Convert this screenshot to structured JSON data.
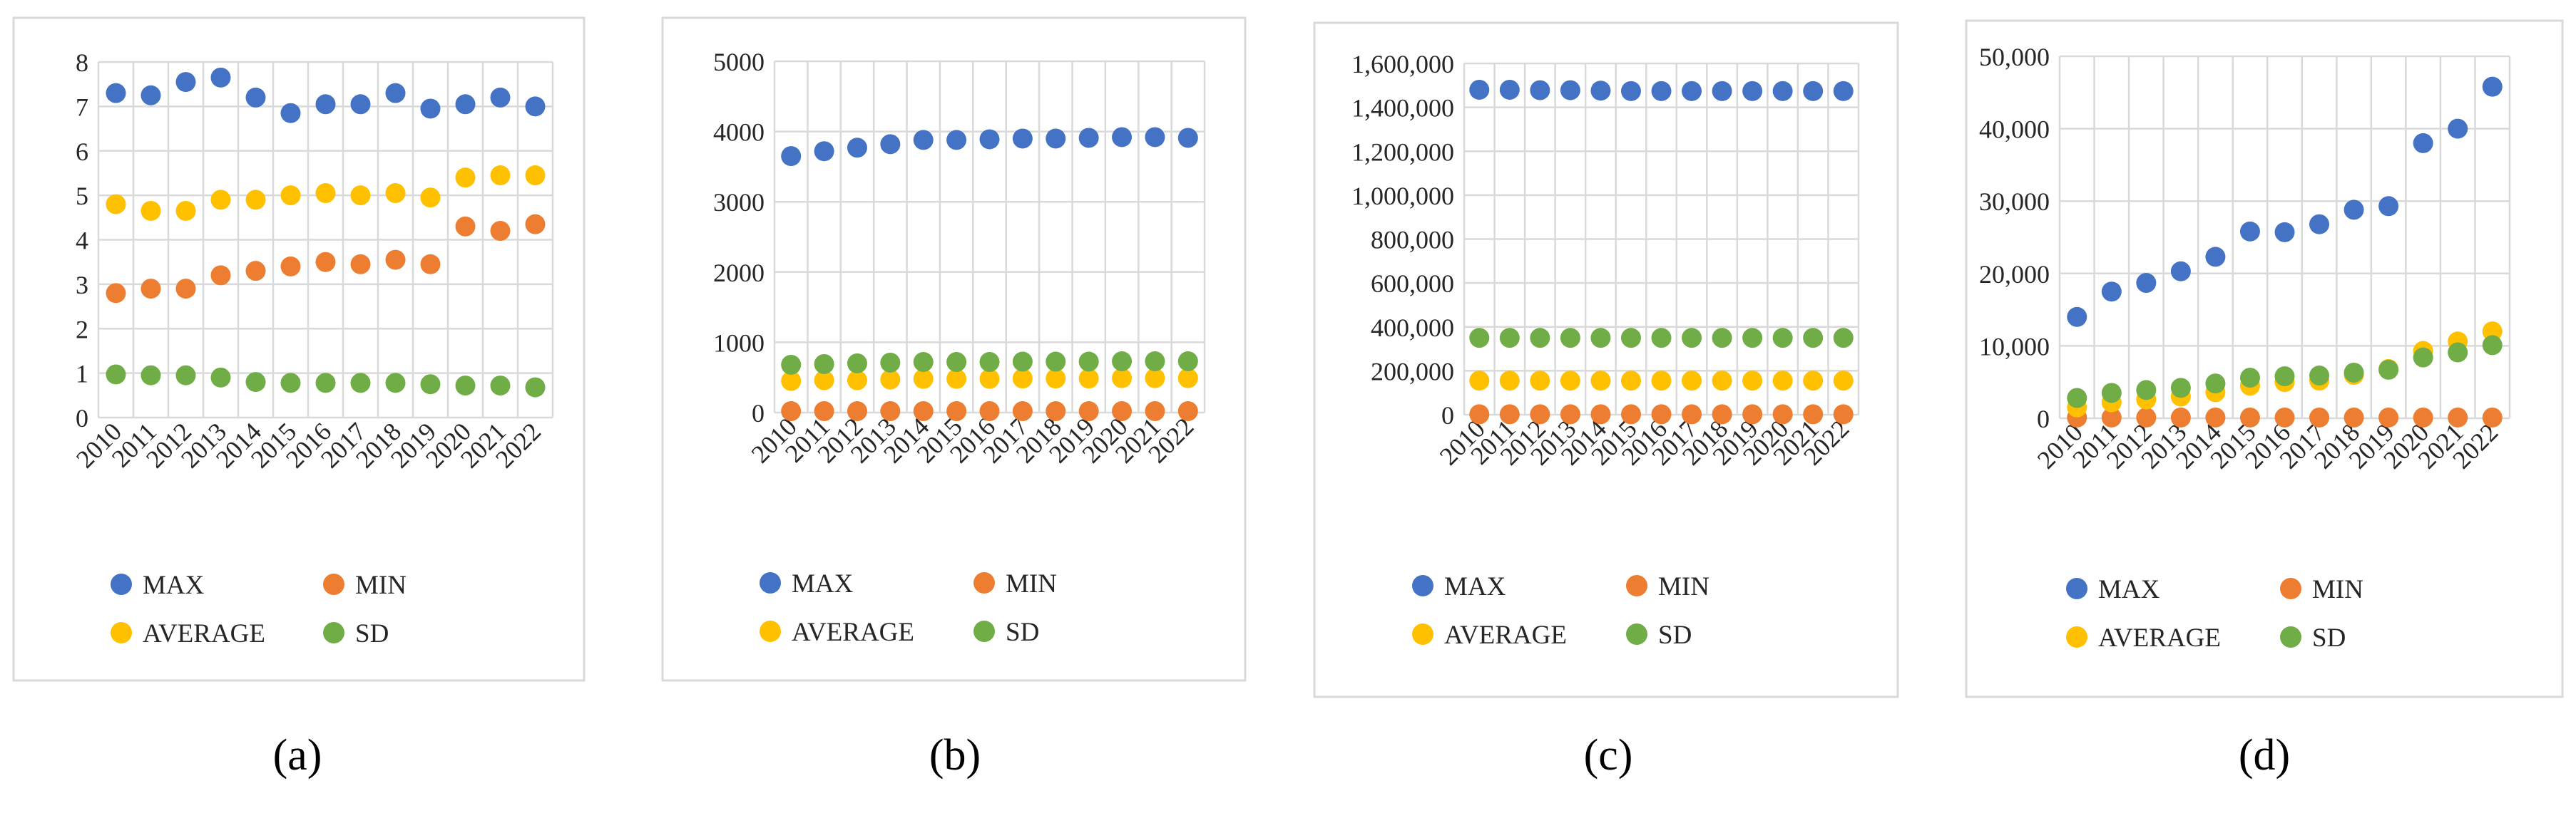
{
  "chart_data": [
    {
      "type": "scatter",
      "caption": "(a)",
      "categories": [
        "2010",
        "2011",
        "2012",
        "2013",
        "2014",
        "2015",
        "2016",
        "2017",
        "2018",
        "2019",
        "2020",
        "2021",
        "2022"
      ],
      "ylim": [
        0,
        8
      ],
      "yticks": [
        0,
        1,
        2,
        3,
        4,
        5,
        6,
        7,
        8
      ],
      "ytick_labels": [
        "0",
        "1",
        "2",
        "3",
        "4",
        "5",
        "6",
        "7",
        "8"
      ],
      "series": [
        {
          "name": "MAX",
          "color": "#4472C4",
          "values": [
            7.3,
            7.25,
            7.55,
            7.65,
            7.2,
            6.85,
            7.05,
            7.05,
            7.3,
            6.95,
            7.05,
            7.2,
            7.0
          ]
        },
        {
          "name": "MIN",
          "color": "#ED7D31",
          "values": [
            2.8,
            2.9,
            2.9,
            3.2,
            3.3,
            3.4,
            3.5,
            3.45,
            3.55,
            3.45,
            null,
            null,
            null
          ]
        },
        {
          "name": "AVERAGE",
          "color": "#FFC000",
          "values": [
            4.8,
            4.65,
            4.65,
            4.9,
            4.9,
            5.0,
            5.05,
            5.0,
            5.05,
            4.95,
            5.4,
            5.45,
            5.45
          ]
        },
        {
          "name": "SD",
          "color": "#70AD47",
          "values": [
            0.97,
            0.95,
            0.95,
            0.9,
            0.8,
            0.78,
            0.78,
            0.78,
            0.78,
            0.75,
            0.72,
            0.72,
            0.68
          ]
        },
        {
          "name": "MIN",
          "color": "#ED7D31",
          "values": [
            null,
            null,
            null,
            null,
            null,
            null,
            null,
            null,
            null,
            null,
            4.3,
            4.2,
            4.35
          ]
        }
      ]
    },
    {
      "type": "scatter",
      "caption": "(b)",
      "categories": [
        "2010",
        "2011",
        "2012",
        "2013",
        "2014",
        "2015",
        "2016",
        "2017",
        "2018",
        "2019",
        "2020",
        "2021",
        "2022"
      ],
      "ylim": [
        0,
        5000
      ],
      "yticks": [
        0,
        1000,
        2000,
        3000,
        4000,
        5000
      ],
      "ytick_labels": [
        "0",
        "1000",
        "2000",
        "3000",
        "4000",
        "5000"
      ],
      "series": [
        {
          "name": "MAX",
          "color": "#4472C4",
          "values": [
            3650,
            3720,
            3770,
            3820,
            3880,
            3880,
            3890,
            3900,
            3900,
            3910,
            3920,
            3920,
            3910
          ]
        },
        {
          "name": "MIN",
          "color": "#ED7D31",
          "values": [
            20,
            20,
            20,
            20,
            20,
            20,
            20,
            20,
            20,
            20,
            20,
            20,
            20
          ]
        },
        {
          "name": "AVERAGE",
          "color": "#FFC000",
          "values": [
            450,
            460,
            460,
            470,
            480,
            480,
            480,
            485,
            485,
            485,
            490,
            490,
            490
          ]
        },
        {
          "name": "SD",
          "color": "#70AD47",
          "values": [
            680,
            690,
            700,
            710,
            720,
            720,
            720,
            725,
            725,
            725,
            730,
            730,
            730
          ]
        }
      ]
    },
    {
      "type": "scatter",
      "caption": "(c)",
      "categories": [
        "2010",
        "2011",
        "2012",
        "2013",
        "2014",
        "2015",
        "2016",
        "2017",
        "2018",
        "2019",
        "2020",
        "2021",
        "2022"
      ],
      "ylim": [
        0,
        1600000
      ],
      "yticks": [
        0,
        200000,
        400000,
        600000,
        800000,
        1000000,
        1200000,
        1400000,
        1600000
      ],
      "ytick_labels": [
        "0",
        "200,000",
        "400,000",
        "600,000",
        "800,000",
        "1,000,000",
        "1,200,000",
        "1,400,000",
        "1,600,000"
      ],
      "series": [
        {
          "name": "MAX",
          "color": "#4472C4",
          "values": [
            1480000,
            1480000,
            1478000,
            1478000,
            1476000,
            1474000,
            1474000,
            1474000,
            1474000,
            1474000,
            1474000,
            1474000,
            1474000
          ]
        },
        {
          "name": "MIN",
          "color": "#ED7D31",
          "values": [
            2000,
            2000,
            2000,
            2000,
            2000,
            2000,
            2000,
            2000,
            2000,
            2000,
            2000,
            2000,
            2000
          ]
        },
        {
          "name": "AVERAGE",
          "color": "#FFC000",
          "values": [
            155000,
            155000,
            155000,
            155000,
            155000,
            155000,
            155000,
            155000,
            155000,
            155000,
            155000,
            155000,
            155000
          ]
        },
        {
          "name": "SD",
          "color": "#70AD47",
          "values": [
            350000,
            350000,
            350000,
            350000,
            350000,
            350000,
            350000,
            350000,
            350000,
            350000,
            350000,
            350000,
            350000
          ]
        }
      ]
    },
    {
      "type": "scatter",
      "caption": "(d)",
      "categories": [
        "2010",
        "2011",
        "2012",
        "2013",
        "2014",
        "2015",
        "2016",
        "2017",
        "2018",
        "2019",
        "2020",
        "2021",
        "2022"
      ],
      "ylim": [
        0,
        50000
      ],
      "yticks": [
        0,
        10000,
        20000,
        30000,
        40000,
        50000
      ],
      "ytick_labels": [
        "0",
        "10,000",
        "20,000",
        "30,000",
        "40,000",
        "50,000"
      ],
      "series": [
        {
          "name": "MAX",
          "color": "#4472C4",
          "values": [
            14000,
            17500,
            18700,
            20300,
            22300,
            25800,
            25700,
            26800,
            28800,
            29300,
            38000,
            40000,
            45800
          ]
        },
        {
          "name": "MIN",
          "color": "#ED7D31",
          "values": [
            100,
            100,
            100,
            100,
            100,
            100,
            100,
            100,
            100,
            100,
            100,
            100,
            100
          ]
        },
        {
          "name": "AVERAGE",
          "color": "#FFC000",
          "values": [
            1500,
            2200,
            2600,
            3000,
            3600,
            4500,
            5000,
            5200,
            6000,
            6800,
            9300,
            10600,
            12000
          ]
        },
        {
          "name": "SD",
          "color": "#70AD47",
          "values": [
            2800,
            3500,
            3900,
            4200,
            4800,
            5600,
            5800,
            5900,
            6300,
            6700,
            8400,
            9100,
            10100
          ]
        }
      ]
    }
  ],
  "legend": {
    "items": [
      {
        "name": "MAX",
        "color": "#4472C4"
      },
      {
        "name": "MIN",
        "color": "#ED7D31"
      },
      {
        "name": "AVERAGE",
        "color": "#FFC000"
      },
      {
        "name": "SD",
        "color": "#70AD47"
      }
    ]
  }
}
